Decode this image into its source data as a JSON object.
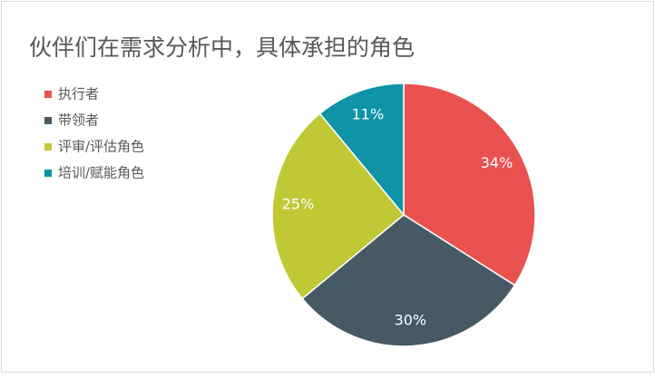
{
  "chart_data": {
    "type": "pie",
    "title": "伙伴们在需求分析中，具体承担的角色",
    "categories": [
      "执行者",
      "带领者",
      "评审/评估角色",
      "培训/赋能角色"
    ],
    "values": [
      34,
      30,
      25,
      11
    ],
    "value_labels": [
      "34%",
      "30%",
      "25%",
      "11%"
    ],
    "colors": [
      "#e9524f",
      "#455a64",
      "#c0c935",
      "#0e94a6"
    ],
    "legend": "left"
  }
}
